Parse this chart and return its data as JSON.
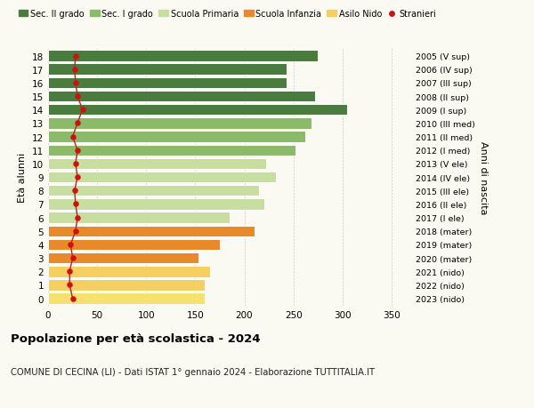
{
  "ages": [
    0,
    1,
    2,
    3,
    4,
    5,
    6,
    7,
    8,
    9,
    10,
    11,
    12,
    13,
    14,
    15,
    16,
    17,
    18
  ],
  "bar_values": [
    160,
    160,
    165,
    153,
    175,
    210,
    185,
    220,
    215,
    232,
    222,
    252,
    262,
    268,
    305,
    272,
    243,
    243,
    275
  ],
  "stranieri_values": [
    25,
    22,
    22,
    25,
    23,
    28,
    30,
    28,
    27,
    30,
    28,
    30,
    25,
    30,
    35,
    30,
    28,
    27,
    28
  ],
  "right_labels": [
    "2023 (nido)",
    "2022 (nido)",
    "2021 (nido)",
    "2020 (mater)",
    "2019 (mater)",
    "2018 (mater)",
    "2017 (I ele)",
    "2016 (II ele)",
    "2015 (III ele)",
    "2014 (IV ele)",
    "2013 (V ele)",
    "2012 (I med)",
    "2011 (II med)",
    "2010 (III med)",
    "2009 (I sup)",
    "2008 (II sup)",
    "2007 (III sup)",
    "2006 (IV sup)",
    "2005 (V sup)"
  ],
  "bar_colors": [
    "#f5e070",
    "#f5d060",
    "#f5d060",
    "#e8892a",
    "#e8892a",
    "#e8892a",
    "#c8dda0",
    "#c8dda0",
    "#c8dda0",
    "#c8dda0",
    "#c8dda0",
    "#8aba6a",
    "#8aba6a",
    "#8aba6a",
    "#4a7c3f",
    "#4a7c3f",
    "#4a7c3f",
    "#4a7c3f",
    "#4a7c3f"
  ],
  "legend_labels": [
    "Sec. II grado",
    "Sec. I grado",
    "Scuola Primaria",
    "Scuola Infanzia",
    "Asilo Nido",
    "Stranieri"
  ],
  "legend_colors": [
    "#4a7c3f",
    "#8aba6a",
    "#c8dda0",
    "#e8892a",
    "#f5d060",
    "#cc1111"
  ],
  "ylabel": "Età alunni",
  "right_ylabel": "Anni di nascita",
  "title": "Popolazione per età scolastica - 2024",
  "subtitle": "COMUNE DI CECINA (LI) - Dati ISTAT 1° gennaio 2024 - Elaborazione TUTTITALIA.IT",
  "xlim": [
    0,
    370
  ],
  "xticks": [
    0,
    50,
    100,
    150,
    200,
    250,
    300,
    350
  ],
  "background_color": "#fafaf2",
  "stranieri_color": "#cc1111",
  "stranieri_line_color": "#bb2222"
}
